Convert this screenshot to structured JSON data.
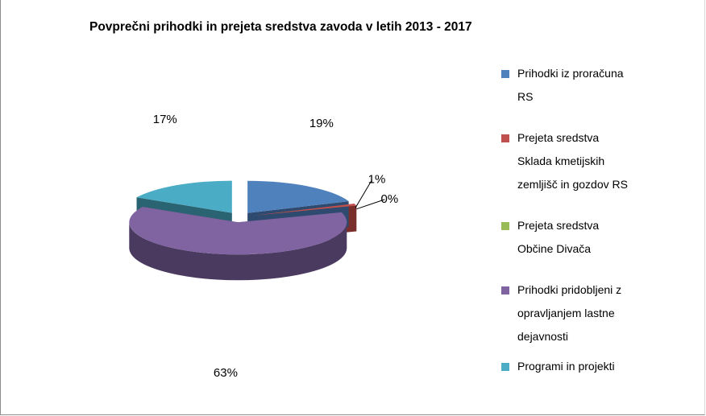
{
  "chart_data": {
    "type": "pie",
    "title": "Povprečni prihodki in prejeta sredstva zavoda  v letih 2013 - 2017",
    "categories": [
      "Prihodki iz proračuna RS",
      "Prejeta sredstva Sklada kmetijskih zemljišč in gozdov RS",
      "Prejeta sredstva Občine Divača",
      "Prihodki pridobljeni z opravljanjem lastne dejavnosti",
      "Programi in projekti"
    ],
    "values": [
      19,
      1,
      0,
      63,
      17
    ],
    "data_labels": [
      "19%",
      "1%",
      "0%",
      "63%",
      "17%"
    ],
    "colors": [
      "#4F81BD",
      "#C0504D",
      "#9BBB59",
      "#8064A2",
      "#4BACC6"
    ],
    "side_colors": [
      "#2E4A6E",
      "#7A2E2C",
      "#5C7232",
      "#4A3A60",
      "#2A6473"
    ],
    "legend_position": "right",
    "style": "3d-exploded-pie"
  },
  "legend": {
    "items": [
      {
        "lines": [
          "Prihodki iz proračuna",
          "RS"
        ],
        "color": "#4F81BD"
      },
      {
        "lines": [
          "Prejeta sredstva",
          "Sklada kmetijskih",
          "zemljišč in gozdov RS"
        ],
        "color": "#C0504D"
      },
      {
        "lines": [
          "Prejeta sredstva",
          "Občine Divača"
        ],
        "color": "#9BBB59"
      },
      {
        "lines": [
          "Prihodki pridobljeni z",
          "opravljanjem lastne",
          "dejavnosti"
        ],
        "color": "#8064A2"
      },
      {
        "lines": [
          "Programi in projekti"
        ],
        "color": "#4BACC6"
      }
    ]
  }
}
